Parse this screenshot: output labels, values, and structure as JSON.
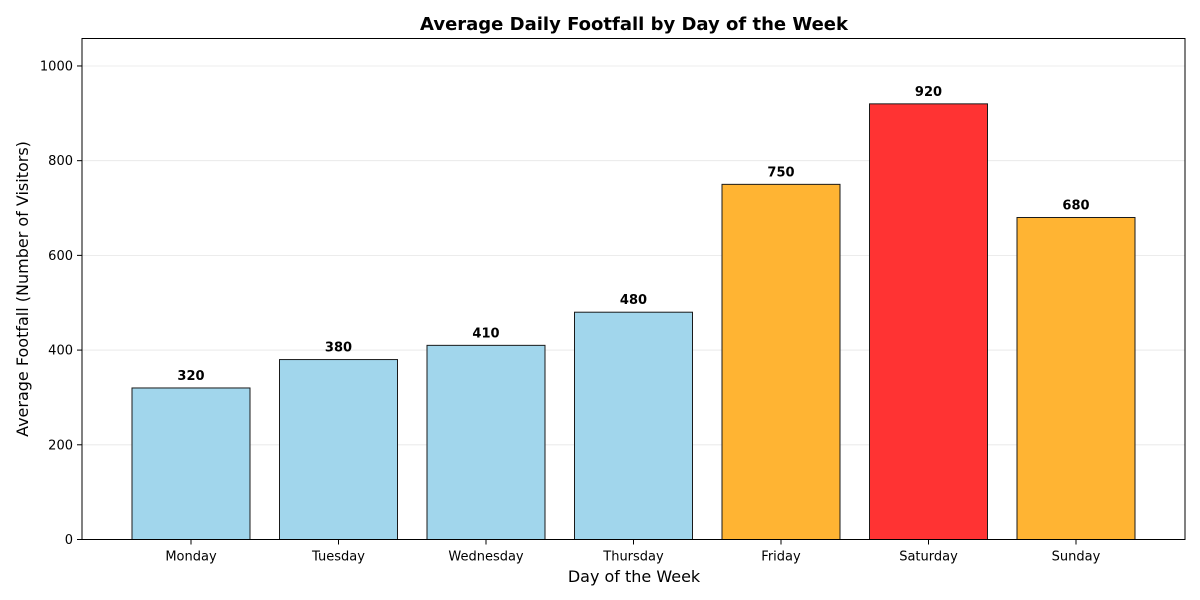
{
  "chart_data": {
    "type": "bar",
    "title": "Average Daily Footfall by Day of the Week",
    "xlabel": "Day of the Week",
    "ylabel": "Average Footfall (Number of Visitors)",
    "categories": [
      "Monday",
      "Tuesday",
      "Wednesday",
      "Thursday",
      "Friday",
      "Saturday",
      "Sunday"
    ],
    "values": [
      320,
      380,
      410,
      480,
      750,
      920,
      680
    ],
    "value_labels": [
      "320",
      "380",
      "410",
      "480",
      "750",
      "920",
      "680"
    ],
    "colors": [
      "#a1d6ec",
      "#a1d6ec",
      "#a1d6ec",
      "#a1d6ec",
      "#ffb433",
      "#ff3333",
      "#ffb433"
    ],
    "ylim": [
      0,
      1058
    ],
    "yticks": [
      0,
      200,
      400,
      600,
      800,
      1000
    ],
    "ytick_labels": [
      "0",
      "200",
      "400",
      "600",
      "800",
      "1000"
    ],
    "grid": true,
    "legend": "none"
  }
}
